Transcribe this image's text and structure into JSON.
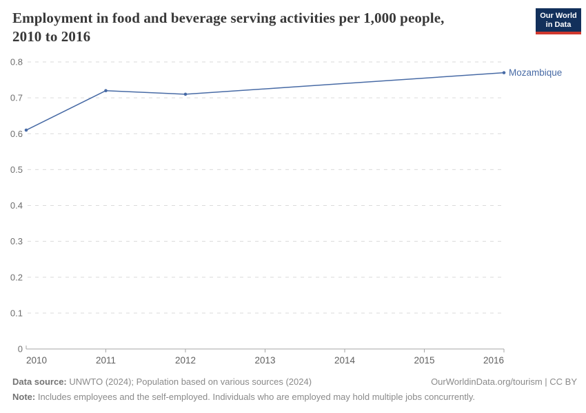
{
  "title": {
    "line1": "Employment in food and beverage serving activities per 1,000 people,",
    "line2": "2010 to 2016"
  },
  "logo": {
    "line1": "Our World",
    "line2": "in Data"
  },
  "colors": {
    "line": "#476aa5",
    "series_label": "#476aa5",
    "grid": "#dadada",
    "axis": "#a5a5a5",
    "y_tick_label": "#6e6e6e",
    "x_tick_label": "#606060",
    "title_text": "#383838",
    "footer_text": "#8a8a8a",
    "logo_bg": "#12305b",
    "logo_accent": "#d0382e"
  },
  "chart_data": {
    "type": "line",
    "title": "Employment in food and beverage serving activities per 1,000 people, 2010 to 2016",
    "xlabel": "",
    "ylabel": "",
    "xlim": [
      2010,
      2016
    ],
    "ylim": [
      0,
      0.8
    ],
    "x_ticks": [
      2010,
      2011,
      2012,
      2013,
      2014,
      2015,
      2016
    ],
    "y_ticks": [
      0,
      0.1,
      0.2,
      0.3,
      0.4,
      0.5,
      0.6,
      0.7,
      0.8
    ],
    "grid": "horizontal-dashed",
    "legend_position": "end-of-line-label",
    "series": [
      {
        "name": "Mozambique",
        "points": [
          {
            "x": 2010,
            "y": 0.61
          },
          {
            "x": 2011,
            "y": 0.72
          },
          {
            "x": 2012,
            "y": 0.71
          },
          {
            "x": 2016,
            "y": 0.77
          }
        ]
      }
    ]
  },
  "footer": {
    "datasource_label": "Data source:",
    "datasource_text": " UNWTO (2024); Population based on various sources (2024)",
    "credit": "OurWorldinData.org/tourism | CC BY",
    "note_label": "Note:",
    "note_text": " Includes employees and the self-employed. Individuals who are employed may hold multiple jobs concurrently."
  }
}
